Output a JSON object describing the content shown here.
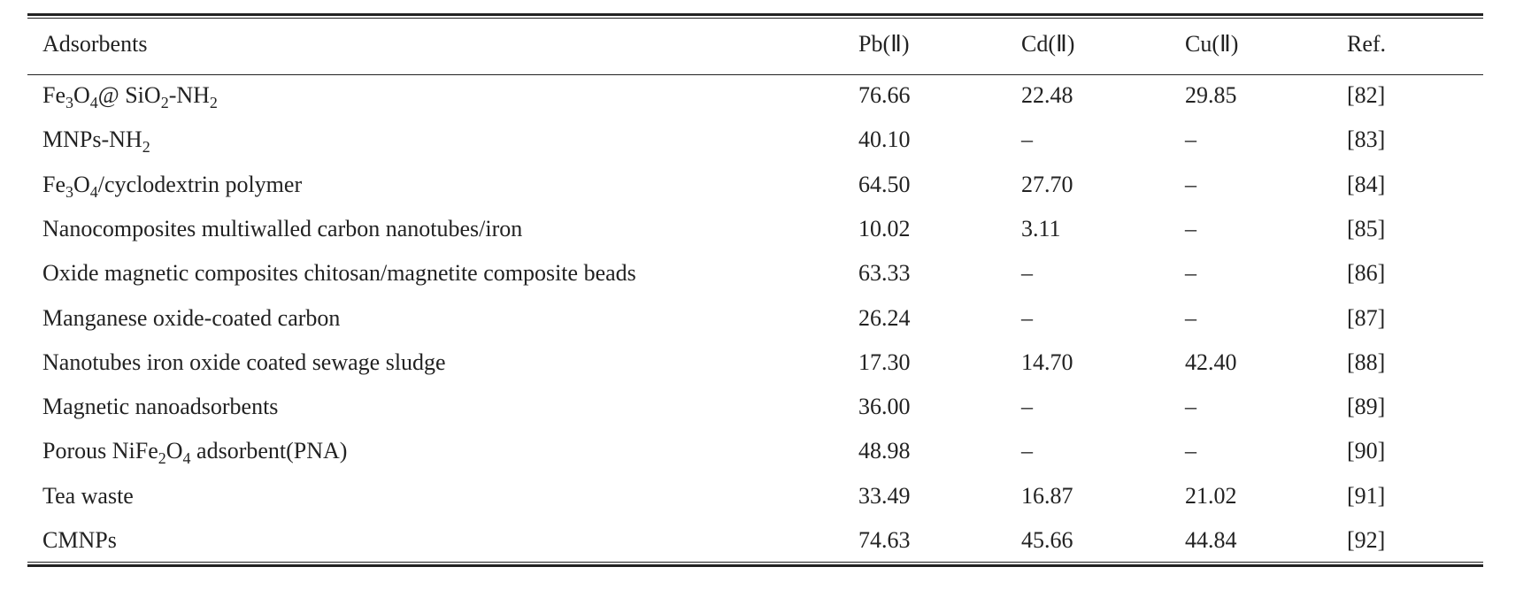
{
  "table": {
    "header": [
      "Adsorbents",
      "Pb(Ⅱ)",
      "Cd(Ⅱ)",
      "Cu(Ⅱ)",
      "Ref."
    ],
    "rows": [
      [
        [
          "Fe",
          {
            "sub": "3"
          },
          "O",
          {
            "sub": "4"
          },
          "@ SiO",
          {
            "sub": "2"
          },
          "-NH",
          {
            "sub": "2"
          }
        ],
        "76.66",
        "22.48",
        "29.85",
        "[82]"
      ],
      [
        [
          "MNPs-NH",
          {
            "sub": "2"
          }
        ],
        "40.10",
        "–",
        "–",
        "[83]"
      ],
      [
        [
          "Fe",
          {
            "sub": "3"
          },
          "O",
          {
            "sub": "4"
          },
          "/cyclodextrin polymer"
        ],
        "64.50",
        "27.70",
        "–",
        "[84]"
      ],
      [
        [
          "Nanocomposites multiwalled carbon nanotubes/iron"
        ],
        "10.02",
        "3.11",
        "–",
        "[85]"
      ],
      [
        [
          "Oxide magnetic composites chitosan/magnetite composite beads"
        ],
        "63.33",
        "–",
        "–",
        "[86]"
      ],
      [
        [
          "Manganese oxide-coated carbon"
        ],
        "26.24",
        "–",
        "–",
        "[87]"
      ],
      [
        [
          "Nanotubes iron oxide coated sewage sludge"
        ],
        "17.30",
        "14.70",
        "42.40",
        "[88]"
      ],
      [
        [
          "Magnetic nanoadsorbents"
        ],
        "36.00",
        "–",
        "–",
        "[89]"
      ],
      [
        [
          "Porous NiFe",
          {
            "sub": "2"
          },
          "O",
          {
            "sub": "4"
          },
          " adsorbent(PNA)"
        ],
        "48.98",
        "–",
        "–",
        "[90]"
      ],
      [
        [
          "Tea waste"
        ],
        "33.49",
        "16.87",
        "21.02",
        "[91]"
      ],
      [
        [
          "CMNPs"
        ],
        "74.63",
        "45.66",
        "44.84",
        "[92]"
      ]
    ]
  }
}
